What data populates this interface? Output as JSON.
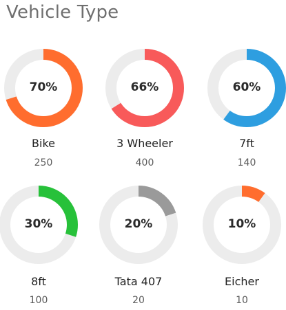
{
  "title": "Vehicle Type",
  "track_color": "#ececec",
  "vehicles": [
    {
      "label": "Bike",
      "percent_text": "70%",
      "progress": 0.7,
      "count": "250",
      "color": "#ff6d2e"
    },
    {
      "label": "3 Wheeler",
      "percent_text": "66%",
      "progress": 0.66,
      "count": "400",
      "color": "#f85a5a"
    },
    {
      "label": "7ft",
      "percent_text": "60%",
      "progress": 0.6,
      "count": "140",
      "color": "#2e9ee0"
    },
    {
      "label": "8ft",
      "percent_text": "30%",
      "progress": 0.3,
      "count": "100",
      "color": "#27c13a"
    },
    {
      "label": "Tata 407",
      "percent_text": "20%",
      "progress": 0.2,
      "count": "20",
      "color": "#9a9a9a"
    },
    {
      "label": "Eicher",
      "percent_text": "10%",
      "progress": 0.1,
      "count": "10",
      "color": "#ff6d2e"
    }
  ]
}
